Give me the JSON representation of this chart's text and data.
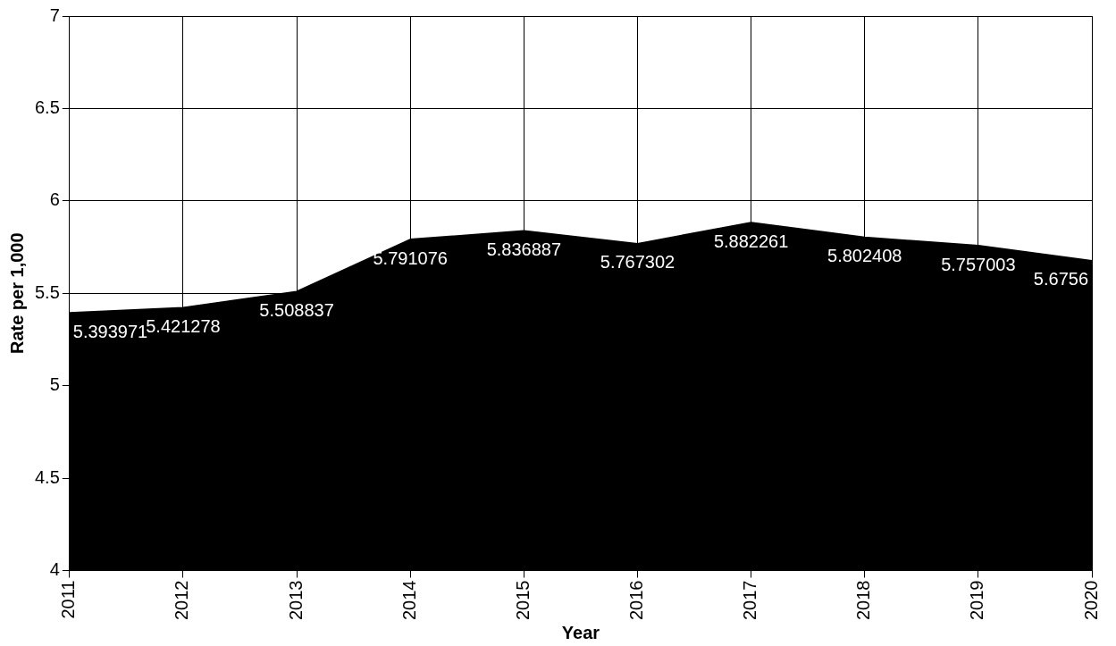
{
  "chart_data": {
    "type": "area",
    "xlabel": "Year",
    "ylabel": "Rate per 1,000",
    "categories": [
      "2011",
      "2012",
      "2013",
      "2014",
      "2015",
      "2016",
      "2017",
      "2018",
      "2019",
      "2020"
    ],
    "values": [
      5.393971,
      5.421278,
      5.508837,
      5.791076,
      5.836887,
      5.767302,
      5.882261,
      5.802408,
      5.757003,
      5.6756
    ],
    "color": "#000000",
    "ylim": [
      4,
      7
    ],
    "yticks": [
      4,
      4.5,
      5,
      5.5,
      6,
      6.5,
      7
    ],
    "grid": true,
    "data_labels": true,
    "legend": false
  }
}
